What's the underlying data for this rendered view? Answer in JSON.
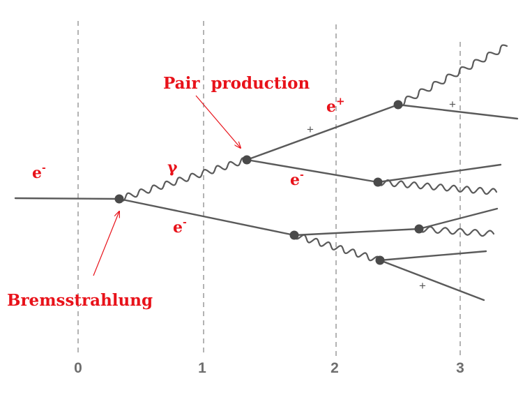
{
  "labels": {
    "pair_production": "Pair  production",
    "bremsstrahlung": "Bremsstrahlung",
    "gamma": "γ",
    "electron_base": "e",
    "electron_sup": "-",
    "positron_base": "e",
    "positron_sup": "+"
  },
  "axis_ticks": [
    "0",
    "1",
    "2",
    "3"
  ],
  "charge_marker": "+",
  "colors": {
    "annotation": "#e8121a",
    "lines": "#5a5a5a",
    "grid": "#8a8a8a",
    "tick_text": "#6e6e6e"
  }
}
